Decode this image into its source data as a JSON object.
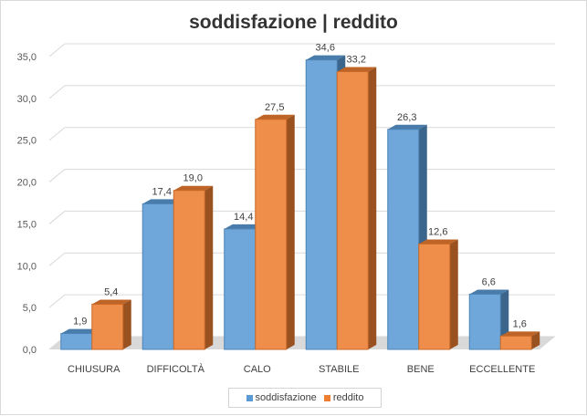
{
  "chart_data": {
    "type": "bar",
    "title": "soddisfazione | reddito",
    "categories": [
      "CHIUSURA",
      "DIFFICOLTÀ",
      "CALO",
      "STABILE",
      "BENE",
      "ECCELLENTE"
    ],
    "series": [
      {
        "name": "soddisfazione",
        "values": [
          1.9,
          17.4,
          14.4,
          34.6,
          26.3,
          6.6
        ],
        "labels": [
          "1,9",
          "17,4",
          "14,4",
          "34,6",
          "26,3",
          "6,6"
        ],
        "color": "#5b9bd5"
      },
      {
        "name": "reddito",
        "values": [
          5.4,
          19.0,
          27.5,
          33.2,
          12.6,
          1.6
        ],
        "labels": [
          "5,4",
          "19,0",
          "27,5",
          "33,2",
          "12,6",
          "1,6"
        ],
        "color": "#ed7d31"
      }
    ],
    "ylim": [
      0,
      35
    ],
    "yticks": [
      0,
      5,
      10,
      15,
      20,
      25,
      30,
      35
    ],
    "ytick_labels": [
      "0,0",
      "5,0",
      "10,0",
      "15,0",
      "20,0",
      "25,0",
      "30,0",
      "35,0"
    ],
    "xlabel": "",
    "ylabel": "",
    "grid": true,
    "legend": "bottom",
    "style": "3d-column"
  }
}
